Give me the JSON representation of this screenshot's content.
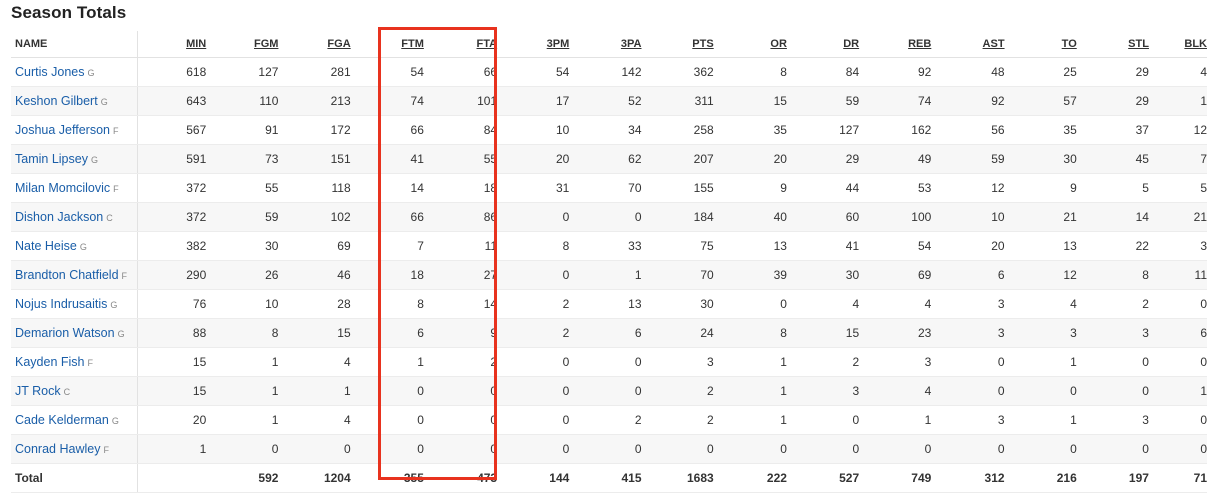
{
  "title": "Season Totals",
  "highlight_color": "#e8321e",
  "columns": [
    "NAME",
    "MIN",
    "FGM",
    "FGA",
    "FTM",
    "FTA",
    "3PM",
    "3PA",
    "PTS",
    "OR",
    "DR",
    "REB",
    "AST",
    "TO",
    "STL",
    "BLK"
  ],
  "players": [
    {
      "name": "Curtis Jones",
      "pos": "G",
      "stats": [
        "618",
        "127",
        "281",
        "54",
        "66",
        "54",
        "142",
        "362",
        "8",
        "84",
        "92",
        "48",
        "25",
        "29",
        "4"
      ]
    },
    {
      "name": "Keshon Gilbert",
      "pos": "G",
      "stats": [
        "643",
        "110",
        "213",
        "74",
        "101",
        "17",
        "52",
        "311",
        "15",
        "59",
        "74",
        "92",
        "57",
        "29",
        "1"
      ]
    },
    {
      "name": "Joshua Jefferson",
      "pos": "F",
      "stats": [
        "567",
        "91",
        "172",
        "66",
        "84",
        "10",
        "34",
        "258",
        "35",
        "127",
        "162",
        "56",
        "35",
        "37",
        "12"
      ]
    },
    {
      "name": "Tamin Lipsey",
      "pos": "G",
      "stats": [
        "591",
        "73",
        "151",
        "41",
        "55",
        "20",
        "62",
        "207",
        "20",
        "29",
        "49",
        "59",
        "30",
        "45",
        "7"
      ]
    },
    {
      "name": "Milan Momcilovic",
      "pos": "F",
      "stats": [
        "372",
        "55",
        "118",
        "14",
        "18",
        "31",
        "70",
        "155",
        "9",
        "44",
        "53",
        "12",
        "9",
        "5",
        "5"
      ]
    },
    {
      "name": "Dishon Jackson",
      "pos": "C",
      "stats": [
        "372",
        "59",
        "102",
        "66",
        "86",
        "0",
        "0",
        "184",
        "40",
        "60",
        "100",
        "10",
        "21",
        "14",
        "21"
      ]
    },
    {
      "name": "Nate Heise",
      "pos": "G",
      "stats": [
        "382",
        "30",
        "69",
        "7",
        "11",
        "8",
        "33",
        "75",
        "13",
        "41",
        "54",
        "20",
        "13",
        "22",
        "3"
      ]
    },
    {
      "name": "Brandton Chatfield",
      "pos": "F",
      "stats": [
        "290",
        "26",
        "46",
        "18",
        "27",
        "0",
        "1",
        "70",
        "39",
        "30",
        "69",
        "6",
        "12",
        "8",
        "11"
      ]
    },
    {
      "name": "Nojus Indrusaitis",
      "pos": "G",
      "stats": [
        "76",
        "10",
        "28",
        "8",
        "14",
        "2",
        "13",
        "30",
        "0",
        "4",
        "4",
        "3",
        "4",
        "2",
        "0"
      ]
    },
    {
      "name": "Demarion Watson",
      "pos": "G",
      "stats": [
        "88",
        "8",
        "15",
        "6",
        "9",
        "2",
        "6",
        "24",
        "8",
        "15",
        "23",
        "3",
        "3",
        "3",
        "6"
      ]
    },
    {
      "name": "Kayden Fish",
      "pos": "F",
      "stats": [
        "15",
        "1",
        "4",
        "1",
        "2",
        "0",
        "0",
        "3",
        "1",
        "2",
        "3",
        "0",
        "1",
        "0",
        "0"
      ]
    },
    {
      "name": "JT Rock",
      "pos": "C",
      "stats": [
        "15",
        "1",
        "1",
        "0",
        "0",
        "0",
        "0",
        "2",
        "1",
        "3",
        "4",
        "0",
        "0",
        "0",
        "1"
      ]
    },
    {
      "name": "Cade Kelderman",
      "pos": "G",
      "stats": [
        "20",
        "1",
        "4",
        "0",
        "0",
        "0",
        "2",
        "2",
        "1",
        "0",
        "1",
        "3",
        "1",
        "3",
        "0"
      ]
    },
    {
      "name": "Conrad Hawley",
      "pos": "F",
      "stats": [
        "1",
        "0",
        "0",
        "0",
        "0",
        "0",
        "0",
        "0",
        "0",
        "0",
        "0",
        "0",
        "0",
        "0",
        "0"
      ]
    }
  ],
  "totals": {
    "label": "Total",
    "stats": [
      "",
      "592",
      "1204",
      "355",
      "473",
      "144",
      "415",
      "1683",
      "222",
      "527",
      "749",
      "312",
      "216",
      "197",
      "71"
    ]
  }
}
